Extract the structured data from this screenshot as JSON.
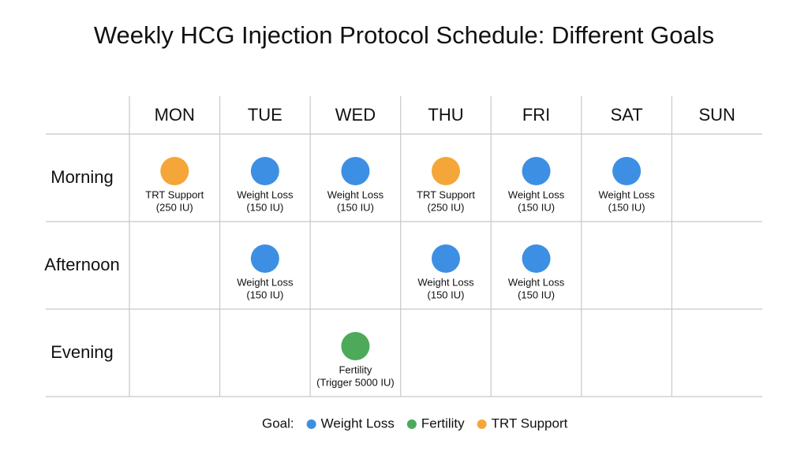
{
  "title": "Weekly HCG Injection Protocol Schedule: Different Goals",
  "schedule": {
    "days": [
      "MON",
      "TUE",
      "WED",
      "THU",
      "FRI",
      "SAT",
      "SUN"
    ],
    "rows": [
      {
        "slot": "Morning",
        "cells": [
          {
            "label": "TRT Support",
            "dose": "(250 IU)",
            "color": "#f5a638"
          },
          {
            "label": "Weight Loss",
            "dose": "(150 IU)",
            "color": "#3d8fe3"
          },
          {
            "label": "Weight Loss",
            "dose": "(150 IU)",
            "color": "#3d8fe3"
          },
          {
            "label": "TRT Support",
            "dose": "(250 IU)",
            "color": "#f5a638"
          },
          {
            "label": "Weight Loss",
            "dose": "(150 IU)",
            "color": "#3d8fe3"
          },
          {
            "label": "Weight Loss",
            "dose": "(150 IU)",
            "color": "#3d8fe3"
          },
          null
        ]
      },
      {
        "slot": "Afternoon",
        "cells": [
          null,
          {
            "label": "Weight Loss",
            "dose": "(150 IU)",
            "color": "#3d8fe3"
          },
          null,
          {
            "label": "Weight Loss",
            "dose": "(150 IU)",
            "color": "#3d8fe3"
          },
          {
            "label": "Weight Loss",
            "dose": "(150 IU)",
            "color": "#3d8fe3"
          },
          null,
          null
        ]
      },
      {
        "slot": "Evening",
        "cells": [
          null,
          null,
          {
            "label": "Fertility",
            "dose": "(Trigger 5000 IU)",
            "color": "#4caa5a"
          },
          null,
          null,
          null,
          null
        ]
      }
    ]
  },
  "legend": {
    "label": "Goal:",
    "items": [
      {
        "name": "Weight Loss",
        "color": "#3d8fe3"
      },
      {
        "name": "Fertility",
        "color": "#4caa5a"
      },
      {
        "name": "TRT Support",
        "color": "#f5a638"
      }
    ]
  }
}
